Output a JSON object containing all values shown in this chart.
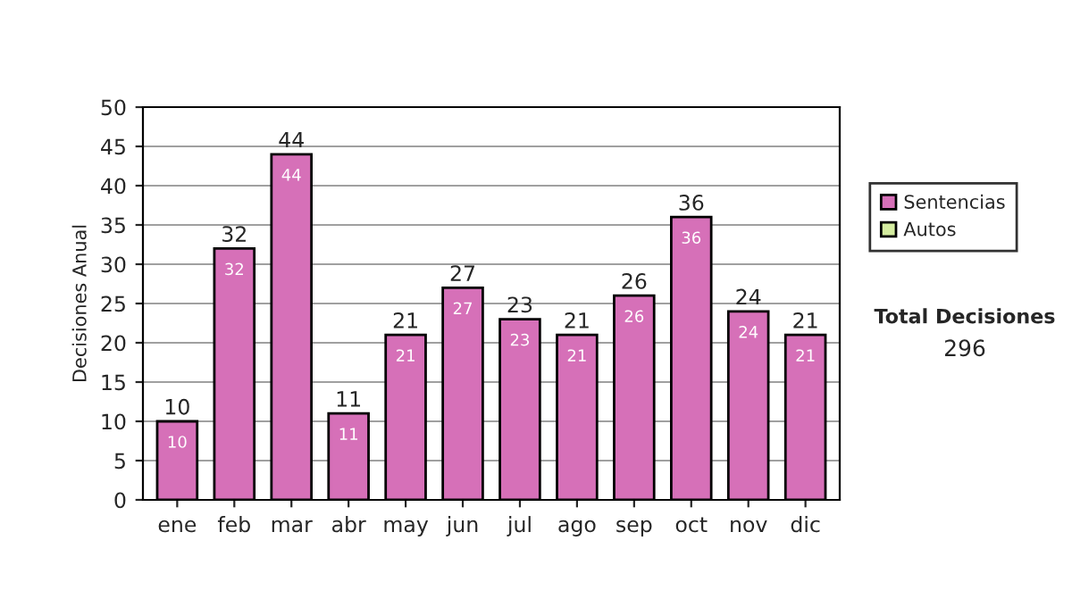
{
  "chart_data": {
    "type": "bar",
    "stacked": true,
    "ylabel": "Decisiones Anual",
    "categories": [
      "ene",
      "feb",
      "mar",
      "abr",
      "may",
      "jun",
      "jul",
      "ago",
      "sep",
      "oct",
      "nov",
      "dic"
    ],
    "series": [
      {
        "name": "Sentencias",
        "color": "#d670b8",
        "values": [
          10,
          32,
          44,
          11,
          21,
          27,
          23,
          21,
          26,
          36,
          24,
          21
        ]
      },
      {
        "name": "Autos",
        "color": "#d4eca0",
        "values": [
          null,
          null,
          null,
          null,
          null,
          null,
          null,
          null,
          null,
          null,
          null,
          null
        ]
      }
    ],
    "data_labels": true,
    "totals": [
      "10",
      "32",
      "44",
      "11",
      "21",
      "27",
      "23",
      "21",
      "26",
      "36",
      "24",
      "21"
    ],
    "ylim": [
      0,
      50
    ],
    "yticks": [
      0,
      5,
      10,
      15,
      20,
      25,
      30,
      35,
      40,
      45,
      50
    ],
    "grid": "y",
    "legend": "right",
    "annotations": [
      "Total Decisiones",
      "296"
    ]
  }
}
